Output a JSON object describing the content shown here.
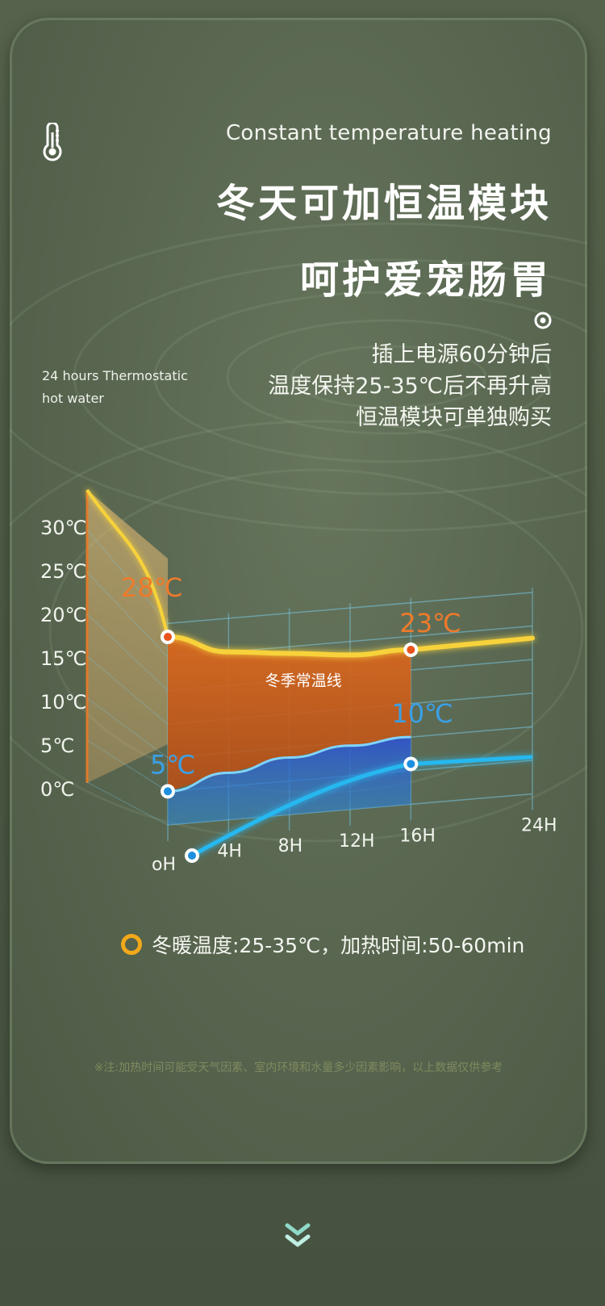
{
  "header": {
    "subtitle_en": "Constant temperature heating",
    "headline_1": "冬天可加恒温模块",
    "headline_2": "呵护爱宠肠胃",
    "desc_lines": [
      "插上电源60分钟后",
      "温度保持25-35℃后不再升高",
      "恒温模块可单独购买"
    ],
    "side_note_lines": [
      "24 hours Thermostatic",
      "hot water"
    ]
  },
  "icons": {
    "thermometer": "thermometer-icon",
    "target": "target-icon",
    "legend": "ring-icon",
    "scroll": "double-chevron-down-icon"
  },
  "legend": {
    "text": "冬暖温度:25-35℃，加热时间:50-60min",
    "color": "#f2a81a"
  },
  "footnote": "※注:加热时间可能受天气因素、室内环境和水量多少因素影响，以上数据仅供参考",
  "chart_data": {
    "type": "area",
    "title": "",
    "xlabel": "",
    "ylabel": "",
    "x_ticks": [
      "oH",
      "4H",
      "8H",
      "12H",
      "16H",
      "24H"
    ],
    "y_ticks": [
      "30℃",
      "25℃",
      "20℃",
      "15℃",
      "10℃",
      "5℃",
      "0℃"
    ],
    "ylim": [
      0,
      30
    ],
    "xlim": [
      0,
      24
    ],
    "grid": true,
    "curve_label": "冬季常温线",
    "annotations": [
      {
        "text": "28℃",
        "color": "#ef7a2a"
      },
      {
        "text": "23℃",
        "color": "#ef7a2a"
      },
      {
        "text": "5℃",
        "color": "#3aa0e6"
      },
      {
        "text": "10℃",
        "color": "#3aa0e6"
      }
    ],
    "series": [
      {
        "x": [
          0,
          4,
          8,
          12,
          16
        ],
        "values": [
          28,
          25,
          24,
          23,
          23
        ],
        "color": "#f7d23a"
      },
      {
        "x": [
          0,
          4,
          8,
          12,
          16
        ],
        "values": [
          5,
          7,
          8.5,
          9.5,
          10
        ],
        "color": "#3b63d8"
      }
    ]
  }
}
